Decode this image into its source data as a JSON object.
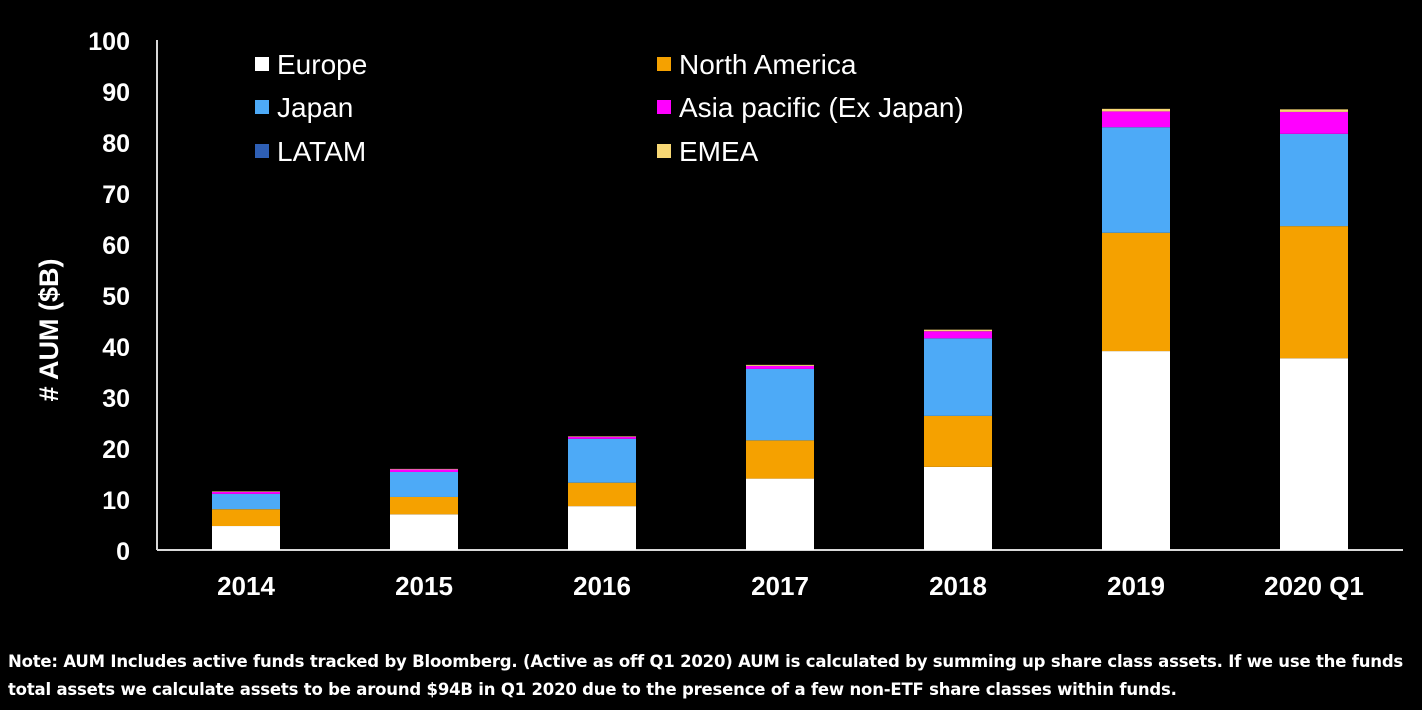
{
  "chart_data": {
    "type": "bar",
    "stacked": true,
    "title": "",
    "xlabel": "",
    "ylabel": "# AUM ($B)",
    "ylim": [
      0,
      100
    ],
    "yticks": [
      0,
      10,
      20,
      30,
      40,
      50,
      60,
      70,
      80,
      90,
      100
    ],
    "grid": false,
    "legend_position": "top-left, inside plot, two columns",
    "categories": [
      "2014",
      "2015",
      "2016",
      "2017",
      "2018",
      "2019",
      "2020 Q1"
    ],
    "series": [
      {
        "name": "Europe",
        "color": "#ffffff",
        "values": [
          4.7,
          7.0,
          8.6,
          14.0,
          16.3,
          39.0,
          37.6
        ]
      },
      {
        "name": "North America",
        "color": "#f5a100",
        "values": [
          3.3,
          3.4,
          4.6,
          7.5,
          10.0,
          23.2,
          25.9
        ]
      },
      {
        "name": "Japan",
        "color": "#4daaf7",
        "values": [
          3.0,
          4.9,
          8.6,
          14.0,
          15.2,
          20.7,
          18.1
        ]
      },
      {
        "name": "Asia pacific (Ex Japan)",
        "color": "#ff00ff",
        "values": [
          0.4,
          0.5,
          0.4,
          0.6,
          1.4,
          3.1,
          4.3
        ]
      },
      {
        "name": "LATAM",
        "color": "#2e5fb5",
        "values": [
          0.0,
          0.0,
          0.0,
          0.0,
          0.0,
          0.0,
          0.0
        ]
      },
      {
        "name": "EMEA",
        "color": "#f7d774",
        "values": [
          0.1,
          0.1,
          0.1,
          0.2,
          0.3,
          0.5,
          0.5
        ]
      }
    ]
  },
  "legend": {
    "items": [
      {
        "label": "Europe",
        "color": "#ffffff"
      },
      {
        "label": "North America",
        "color": "#f5a100"
      },
      {
        "label": "Japan",
        "color": "#4daaf7"
      },
      {
        "label": "Asia pacific (Ex Japan)",
        "color": "#ff00ff"
      },
      {
        "label": "LATAM",
        "color": "#2e5fb5"
      },
      {
        "label": "EMEA",
        "color": "#f7d774"
      }
    ]
  },
  "note": {
    "text": "Note: AUM Includes active funds tracked by Bloomberg. (Active as off Q1 2020) AUM is calculated by summing up share class assets. If we use the funds total assets we calculate assets to be around $94B in Q1 2020 due to the presence of a few non-ETF share classes within funds."
  },
  "colors": {
    "background": "#000000",
    "axis": "#d9d9d9",
    "text": "#ffffff"
  }
}
